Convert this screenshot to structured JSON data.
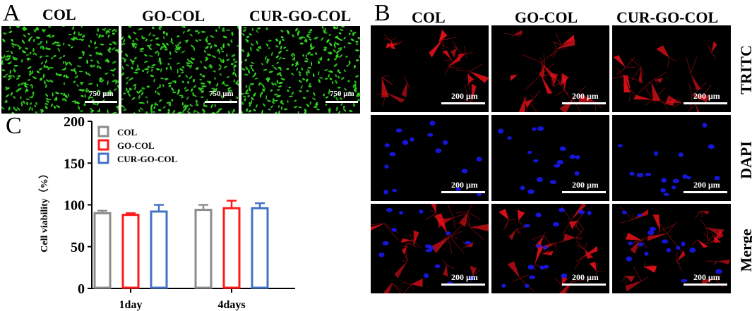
{
  "panel_a": {
    "letter": "A",
    "columns": [
      "COL",
      "GO-COL",
      "CUR-GO-COL"
    ],
    "scale_label": "750 μm",
    "cell_color": "#33dd22"
  },
  "panel_b": {
    "letter": "B",
    "columns": [
      "COL",
      "GO-COL",
      "CUR-GO-COL"
    ],
    "rows": [
      "TRITC",
      "DAPI",
      "Merge"
    ],
    "scale_label": "200 μm",
    "colors": {
      "tritc": "#e8101a",
      "dapi": "#1a1aff"
    }
  },
  "panel_c": {
    "letter": "C"
  },
  "chart_data": {
    "type": "bar",
    "categories": [
      "1day",
      "4days"
    ],
    "series": [
      {
        "name": "COL",
        "values": [
          90,
          94
        ],
        "errors": [
          3,
          6
        ],
        "color": "#8c8c8c"
      },
      {
        "name": "GO-COL",
        "values": [
          88,
          96
        ],
        "errors": [
          2,
          9
        ],
        "color": "#ff1a1a"
      },
      {
        "name": "CUR-GO-COL",
        "values": [
          92,
          96
        ],
        "errors": [
          8,
          6
        ],
        "color": "#4472c4"
      }
    ],
    "ylabel": "Cell viability（%）",
    "xlabel": "",
    "ylim": [
      0,
      200
    ],
    "yticks": [
      0,
      50,
      100,
      150,
      200
    ],
    "legend_position": "top-left",
    "grid": false
  }
}
